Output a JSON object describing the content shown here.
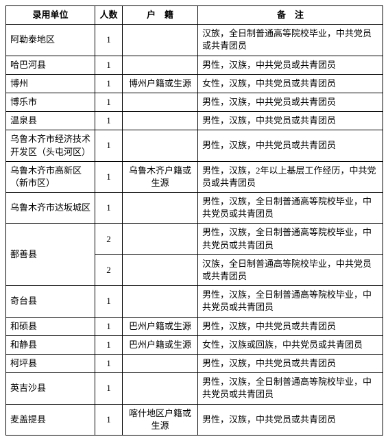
{
  "headers": {
    "unit": "录用单位",
    "count": "人数",
    "huji": "户　籍",
    "note": "备　注"
  },
  "rows": [
    {
      "unit": "阿勒泰地区",
      "count": "1",
      "huji": "",
      "note": "汉族，全日制普通高等院校毕业，中共党员或共青团员"
    },
    {
      "unit": "哈巴河县",
      "count": "1",
      "huji": "",
      "note": "男性，汉族，中共党员或共青团员"
    },
    {
      "unit": "博州",
      "count": "1",
      "huji": "博州户籍或生源",
      "note": "女性，汉族，中共党员或共青团员"
    },
    {
      "unit": "博乐市",
      "count": "1",
      "huji": "",
      "note": "男性，汉族，中共党员或共青团员"
    },
    {
      "unit": "温泉县",
      "count": "1",
      "huji": "",
      "note": "男性，汉族，中共党员或共青团员"
    },
    {
      "unit": "乌鲁木齐市经济技术开发区（头屯河区）",
      "count": "1",
      "huji": "",
      "note": "男性，汉族，中共党员或共青团员"
    },
    {
      "unit": "乌鲁木齐市高新区（新市区）",
      "count": "1",
      "huji": "乌鲁木齐户籍或生源",
      "note": "男性，汉族，2年以上基层工作经历，中共党员或共青团员"
    },
    {
      "unit": "乌鲁木齐市达坂城区",
      "count": "1",
      "huji": "",
      "note": "男性，汉族，全日制普通高等院校毕业，中共党员或共青团员"
    },
    {
      "unit": "鄯善县",
      "unit_rowspan": 2,
      "count": "2",
      "huji": "",
      "note": "男性，汉族，全日制普通高等院校毕业，中共党员或共青团员"
    },
    {
      "unit": null,
      "count": "2",
      "huji": "",
      "note": "汉族，全日制普通高等院校毕业，中共党员或共青团员"
    },
    {
      "unit": "奇台县",
      "count": "1",
      "huji": "",
      "note": "男性，汉族，全日制普通高等院校毕业，中共党员或共青团员"
    },
    {
      "unit": "和硕县",
      "count": "1",
      "huji": "巴州户籍或生源",
      "note": "男性，汉族，中共党员或共青团员"
    },
    {
      "unit": "和静县",
      "count": "1",
      "huji": "巴州户籍或生源",
      "note": "女性，汉族或回族，中共党员或共青团员"
    },
    {
      "unit": "柯坪县",
      "count": "1",
      "huji": "",
      "note": "男性，汉族，中共党员或共青团员"
    },
    {
      "unit": "英吉沙县",
      "count": "1",
      "huji": "",
      "note": "男性，汉族，全日制普通高等院校毕业，中共党员或共青团员"
    },
    {
      "unit": "麦盖提县",
      "count": "1",
      "huji": "喀什地区户籍或生源",
      "note": "男性，汉族，中共党员或共青团员"
    }
  ]
}
